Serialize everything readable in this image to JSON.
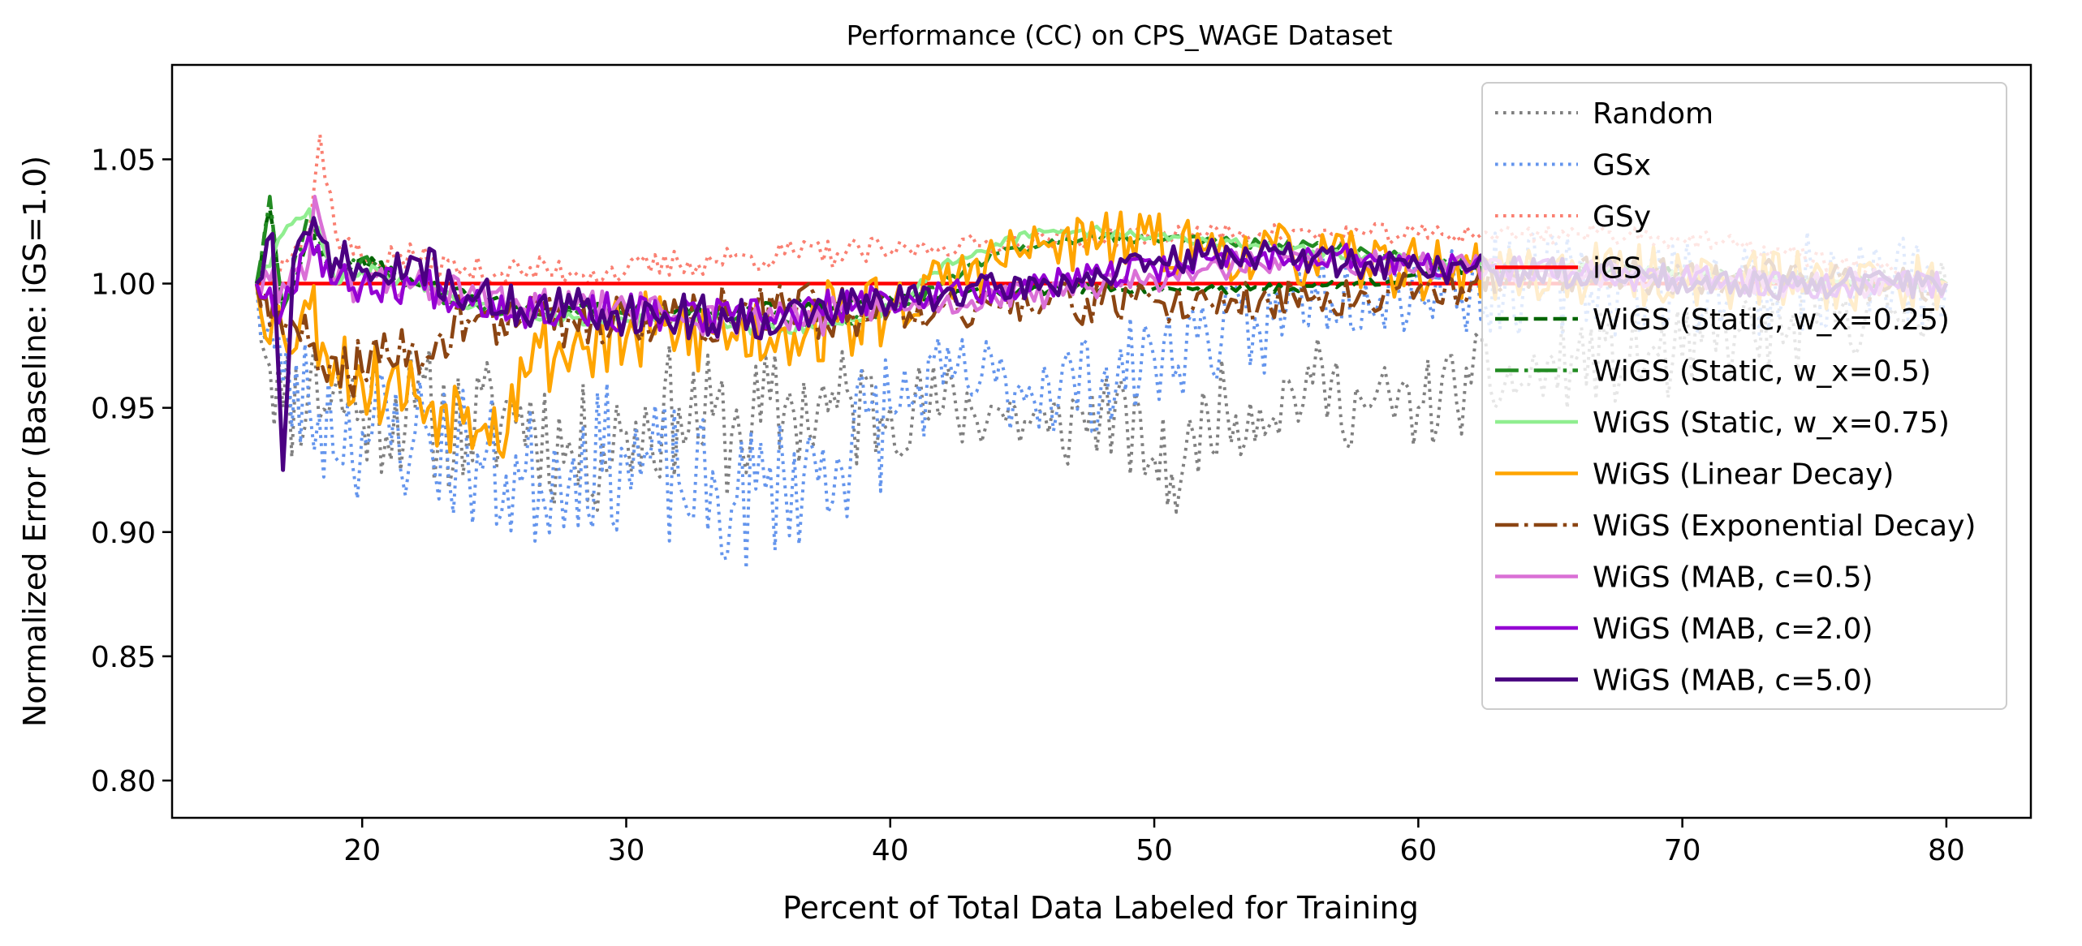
{
  "chart_data": {
    "type": "line",
    "title": "Performance (CC) on CPS_WAGE Dataset",
    "xlabel": "Percent of Total Data Labeled for Training",
    "ylabel": "Normalized Error (Baseline: iGS=1.0)",
    "xlim": [
      12.8,
      83.2
    ],
    "ylim": [
      0.785,
      1.088
    ],
    "xticks": [
      20,
      30,
      40,
      50,
      60,
      70,
      80
    ],
    "yticks": [
      0.8,
      0.85,
      0.9,
      0.95,
      1.0,
      1.05
    ],
    "xtick_labels": [
      "20",
      "30",
      "40",
      "50",
      "60",
      "70",
      "80"
    ],
    "ytick_labels": [
      "0.80",
      "0.85",
      "0.90",
      "0.95",
      "1.00",
      "1.05"
    ],
    "grid": false,
    "legend_position": "upper right",
    "series": [
      {
        "name": "Random",
        "color": "#808080",
        "style": "dotted",
        "width": 4,
        "noise": 0.028,
        "seed": 11,
        "x": [
          16,
          17,
          18,
          20,
          22,
          24,
          26,
          28,
          30,
          32,
          34,
          36,
          38,
          40,
          42,
          44,
          46,
          48,
          50,
          51,
          52,
          54,
          56,
          58,
          60,
          62,
          64,
          66,
          68,
          70,
          72,
          74,
          76,
          78,
          80
        ],
        "y": [
          1.0,
          0.95,
          0.96,
          0.95,
          0.95,
          0.94,
          0.95,
          0.93,
          0.94,
          0.95,
          0.94,
          0.95,
          0.95,
          0.95,
          0.95,
          0.95,
          0.94,
          0.95,
          0.93,
          0.92,
          0.95,
          0.95,
          0.96,
          0.95,
          0.95,
          0.96,
          0.96,
          0.97,
          0.97,
          0.97,
          0.98,
          0.98,
          0.99,
          0.99,
          1.0
        ]
      },
      {
        "name": "GSx",
        "color": "#6495ED",
        "style": "dotted",
        "width": 4,
        "noise": 0.03,
        "seed": 23,
        "x": [
          16,
          17,
          18,
          20,
          22,
          24,
          26,
          28,
          30,
          32,
          34,
          36,
          38,
          40,
          42,
          44,
          46,
          48,
          50,
          52,
          54,
          55,
          56,
          58,
          60,
          62,
          64,
          66,
          68,
          70,
          72,
          74,
          76,
          78,
          80
        ],
        "y": [
          1.0,
          0.96,
          0.95,
          0.94,
          0.94,
          0.93,
          0.92,
          0.93,
          0.93,
          0.92,
          0.91,
          0.92,
          0.93,
          0.95,
          0.96,
          0.96,
          0.96,
          0.96,
          0.97,
          0.98,
          0.98,
          0.99,
          1.0,
          1.0,
          1.0,
          1.0,
          1.0,
          1.0,
          1.0,
          1.0,
          1.0,
          1.0,
          1.0,
          1.0,
          1.0
        ]
      },
      {
        "name": "GSy",
        "color": "#FA8072",
        "style": "dotted",
        "width": 4,
        "noise": 0.006,
        "seed": 37,
        "x": [
          16,
          17,
          18,
          18.4,
          19,
          20,
          22,
          24,
          26,
          28,
          30,
          32,
          34,
          36,
          38,
          40,
          42,
          44,
          46,
          48,
          50,
          52,
          54,
          56,
          58,
          60,
          62,
          64,
          66,
          68,
          70,
          72,
          74,
          76,
          78,
          80
        ],
        "y": [
          1.0,
          1.01,
          1.02,
          1.06,
          1.02,
          1.01,
          1.01,
          1.005,
          1.005,
          1.005,
          1.005,
          1.008,
          1.01,
          1.012,
          1.012,
          1.013,
          1.015,
          1.016,
          1.018,
          1.018,
          1.02,
          1.02,
          1.02,
          1.02,
          1.02,
          1.02,
          1.02,
          1.02,
          1.02,
          1.02,
          1.018,
          1.015,
          1.012,
          1.008,
          1.004,
          1.0
        ]
      },
      {
        "name": "iGS",
        "color": "#FF0000",
        "style": "solid",
        "width": 4.5,
        "noise": 0,
        "seed": 1,
        "x": [
          16,
          80
        ],
        "y": [
          1.0,
          1.0
        ]
      },
      {
        "name": "WiGS (Static, w_x=0.25)",
        "color": "#006400",
        "style": "dashed",
        "width": 4.5,
        "noise": 0.003,
        "seed": 41,
        "x": [
          16,
          16.5,
          17,
          18,
          19,
          20,
          22,
          24,
          26,
          28,
          30,
          32,
          34,
          36,
          38,
          40,
          42,
          44,
          46,
          48,
          50,
          52,
          54,
          56,
          58,
          60,
          62,
          64,
          66,
          68,
          70,
          72,
          74,
          76,
          78,
          80
        ],
        "y": [
          1.0,
          1.03,
          0.99,
          1.02,
          1.0,
          1.01,
          1.0,
          0.995,
          0.99,
          0.99,
          0.99,
          0.99,
          0.99,
          0.99,
          0.992,
          0.994,
          0.996,
          0.997,
          0.997,
          0.998,
          0.998,
          0.998,
          0.998,
          0.999,
          1.0,
          1.004,
          1.006,
          1.007,
          1.006,
          1.005,
          1.004,
          1.003,
          1.002,
          1.001,
          1.0,
          1.0
        ]
      },
      {
        "name": "WiGS (Static, w_x=0.5)",
        "color": "#228B22",
        "style": "dashdot",
        "width": 4.5,
        "noise": 0.003,
        "seed": 43,
        "x": [
          16,
          16.5,
          17,
          18,
          19,
          20,
          22,
          24,
          26,
          28,
          30,
          32,
          34,
          36,
          38,
          40,
          42,
          44,
          46,
          48,
          50,
          52,
          54,
          56,
          58,
          60,
          62,
          64,
          66,
          68,
          70,
          72,
          74,
          76,
          78,
          80
        ],
        "y": [
          1.0,
          1.035,
          0.99,
          1.03,
          1.0,
          1.01,
          1.0,
          0.99,
          0.99,
          0.99,
          0.988,
          0.988,
          0.985,
          0.985,
          0.985,
          0.99,
          1.0,
          1.012,
          1.016,
          1.018,
          1.018,
          1.018,
          1.016,
          1.015,
          1.013,
          1.01,
          1.008,
          1.007,
          1.006,
          1.005,
          1.004,
          1.003,
          1.002,
          1.001,
          1.0,
          1.0
        ]
      },
      {
        "name": "WiGS (Static, w_x=0.75)",
        "color": "#90EE90",
        "style": "solid",
        "width": 4.5,
        "noise": 0.003,
        "seed": 47,
        "x": [
          16,
          17,
          18,
          19,
          20,
          22,
          24,
          26,
          28,
          30,
          32,
          34,
          36,
          38,
          40,
          41,
          42,
          44,
          46,
          48,
          50,
          52,
          54,
          56,
          58,
          60,
          62,
          64,
          66,
          68,
          70,
          72,
          74,
          76,
          78,
          80
        ],
        "y": [
          1.0,
          1.02,
          1.03,
          1.0,
          1.005,
          1.0,
          0.99,
          0.988,
          0.986,
          0.985,
          0.985,
          0.983,
          0.982,
          0.984,
          0.99,
          0.998,
          1.008,
          1.016,
          1.021,
          1.021,
          1.019,
          1.017,
          1.015,
          1.013,
          1.011,
          1.01,
          1.008,
          1.007,
          1.006,
          1.005,
          1.004,
          1.003,
          1.002,
          1.001,
          1.0,
          1.0
        ]
      },
      {
        "name": "WiGS (Linear Decay)",
        "color": "#FFA500",
        "style": "solid",
        "width": 4.5,
        "noise": 0.018,
        "seed": 53,
        "x": [
          16,
          17,
          18,
          19,
          20,
          21,
          22,
          23,
          24,
          25,
          25.5,
          26,
          28,
          30,
          32,
          34,
          36,
          38,
          40,
          42,
          44,
          46,
          48,
          50,
          52,
          54,
          56,
          58,
          60,
          62,
          64,
          66,
          68,
          70,
          72,
          74,
          76,
          78,
          80
        ],
        "y": [
          1.0,
          0.98,
          0.99,
          0.97,
          0.96,
          0.96,
          0.955,
          0.95,
          0.95,
          0.95,
          0.94,
          0.97,
          0.975,
          0.978,
          0.98,
          0.98,
          0.982,
          0.985,
          0.99,
          1.0,
          1.01,
          1.015,
          1.017,
          1.016,
          1.014,
          1.012,
          1.01,
          1.008,
          1.006,
          1.005,
          1.004,
          1.004,
          1.003,
          1.003,
          1.002,
          1.002,
          1.001,
          1.0,
          1.0
        ]
      },
      {
        "name": "WiGS (Exponential Decay)",
        "color": "#8B4513",
        "style": "dashdot",
        "width": 4.5,
        "noise": 0.012,
        "seed": 59,
        "x": [
          16,
          17,
          18,
          19,
          20,
          21,
          22,
          23,
          24,
          26,
          28,
          30,
          32,
          34,
          36,
          38,
          40,
          42,
          44,
          46,
          48,
          50,
          52,
          54,
          56,
          58,
          60,
          62,
          64,
          66,
          68,
          70,
          72,
          74,
          76,
          78,
          80
        ],
        "y": [
          1.0,
          0.98,
          0.975,
          0.97,
          0.965,
          0.97,
          0.975,
          0.98,
          0.985,
          0.985,
          0.985,
          0.986,
          0.987,
          0.988,
          0.989,
          0.99,
          0.99,
          0.991,
          0.991,
          0.992,
          0.992,
          0.993,
          0.993,
          0.993,
          0.994,
          0.996,
          0.998,
          1.0,
          1.002,
          1.004,
          1.004,
          1.004,
          1.003,
          1.003,
          1.002,
          1.001,
          1.0
        ]
      },
      {
        "name": "WiGS (MAB, c=0.5)",
        "color": "#DA70D6",
        "style": "solid",
        "width": 4.5,
        "noise": 0.008,
        "seed": 61,
        "x": [
          16,
          17,
          18,
          18.2,
          19,
          20,
          22,
          24,
          26,
          28,
          30,
          32,
          34,
          36,
          38,
          40,
          42,
          44,
          46,
          48,
          50,
          52,
          54,
          56,
          58,
          60,
          62,
          64,
          66,
          68,
          70,
          72,
          74,
          76,
          78,
          80
        ],
        "y": [
          1.0,
          1.0,
          1.01,
          1.035,
          1.0,
          1.0,
          1.0,
          0.995,
          0.99,
          0.99,
          0.99,
          0.987,
          0.985,
          0.985,
          0.988,
          0.99,
          0.992,
          0.994,
          0.996,
          0.998,
          1.002,
          1.006,
          1.008,
          1.008,
          1.008,
          1.007,
          1.006,
          1.005,
          1.004,
          1.003,
          1.002,
          1.001,
          1.0,
          1.0,
          1.0,
          1.0
        ]
      },
      {
        "name": "WiGS (MAB, c=2.0)",
        "color": "#9400D3",
        "style": "solid",
        "width": 4.5,
        "noise": 0.008,
        "seed": 67,
        "x": [
          16,
          17,
          18,
          19,
          20,
          22,
          24,
          26,
          28,
          30,
          32,
          34,
          36,
          38,
          40,
          42,
          44,
          46,
          48,
          50,
          52,
          54,
          56,
          58,
          60,
          62,
          64,
          66,
          68,
          70,
          72,
          74,
          76,
          78,
          80
        ],
        "y": [
          1.0,
          0.99,
          1.02,
          1.0,
          1.0,
          1.0,
          0.995,
          0.99,
          0.99,
          0.988,
          0.987,
          0.986,
          0.987,
          0.99,
          0.993,
          0.996,
          0.998,
          1.0,
          1.003,
          1.006,
          1.01,
          1.011,
          1.011,
          1.01,
          1.008,
          1.006,
          1.005,
          1.004,
          1.003,
          1.002,
          1.001,
          1.0,
          1.0,
          1.0,
          1.0
        ]
      },
      {
        "name": "WiGS (MAB, c=5.0)",
        "color": "#4B0082",
        "style": "solid",
        "width": 5,
        "noise": 0.009,
        "seed": 71,
        "x": [
          16,
          16.6,
          17,
          17.4,
          18,
          19,
          20,
          21,
          22,
          24,
          26,
          28,
          30,
          32,
          34,
          36,
          38,
          40,
          42,
          44,
          46,
          48,
          50,
          52,
          54,
          56,
          58,
          60,
          62,
          64,
          66,
          68,
          70,
          72,
          74,
          76,
          78,
          80
        ],
        "y": [
          1.0,
          1.02,
          0.925,
          1.01,
          1.02,
          1.01,
          1.005,
          1.0,
          1.01,
          0.995,
          0.99,
          0.99,
          0.988,
          0.987,
          0.986,
          0.987,
          0.99,
          0.993,
          0.996,
          0.998,
          1.0,
          1.003,
          1.008,
          1.012,
          1.012,
          1.01,
          1.008,
          1.007,
          1.006,
          1.005,
          1.004,
          1.003,
          1.002,
          1.001,
          1.0,
          1.0,
          1.0,
          1.0
        ]
      }
    ]
  }
}
